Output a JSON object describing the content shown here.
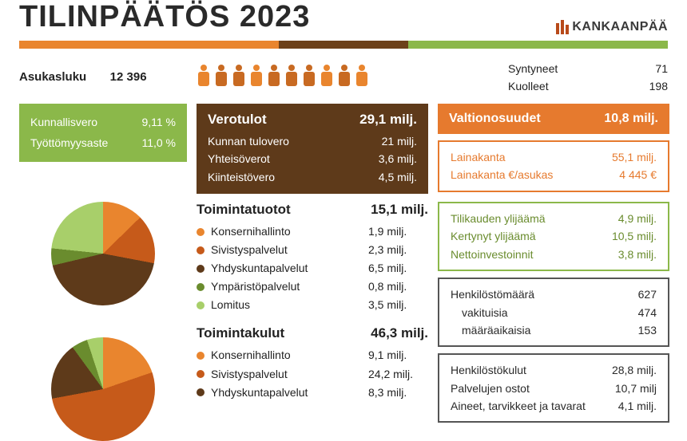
{
  "title": "TILINPÄÄTÖS 2023",
  "brand": "KANKAANPÄÄ",
  "stripe_colors": [
    "#e9852e",
    "#e9852e",
    "#6c4019",
    "#8bb84a",
    "#8bb84a"
  ],
  "population": {
    "label": "Asukasluku",
    "value": "12 396",
    "icon_colors": [
      "#e9852e",
      "#c86a22",
      "#c86a22",
      "#e9852e",
      "#c86a22",
      "#c86a22",
      "#c86a22",
      "#e9852e",
      "#c86a22",
      "#e9852e"
    ]
  },
  "vital": {
    "born_label": "Syntyneet",
    "born_val": "71",
    "dead_label": "Kuolleet",
    "dead_val": "198"
  },
  "rates": {
    "tax_label": "Kunnallisvero",
    "tax_val": "9,11 %",
    "unemp_label": "Työttömyysaste",
    "unemp_val": "11,0 %"
  },
  "tax_income": {
    "title": "Verotulot",
    "total": "29,1 milj.",
    "rows": [
      {
        "label": "Kunnan tulovero",
        "val": "21 milj."
      },
      {
        "label": "Yhteisöverot",
        "val": "3,6 milj."
      },
      {
        "label": "Kiinteistövero",
        "val": "4,5 milj."
      }
    ]
  },
  "state": {
    "title": "Valtionosuudet",
    "val": "10,8 milj."
  },
  "loans": {
    "rows": [
      {
        "label": "Lainakanta",
        "val": "55,1 milj."
      },
      {
        "label": "Lainakanta €/asukas",
        "val": "4 445 €"
      }
    ]
  },
  "surplus": {
    "rows": [
      {
        "label": "Tilikauden ylijäämä",
        "val": "4,9 milj."
      },
      {
        "label": "Kertynyt ylijäämä",
        "val": "10,5 milj."
      },
      {
        "label": "Nettoinvestoinnit",
        "val": "3,8 milj."
      }
    ]
  },
  "staff": {
    "rows": [
      {
        "label": "Henkilöstömäärä",
        "val": "627",
        "indent": false
      },
      {
        "label": "vakituisia",
        "val": "474",
        "indent": true
      },
      {
        "label": "määräaikaisia",
        "val": "153",
        "indent": true
      }
    ]
  },
  "costs": {
    "rows": [
      {
        "label": "Henkilöstökulut",
        "val": "28,8 milj."
      },
      {
        "label": "Palvelujen ostot",
        "val": "10,7 milj"
      },
      {
        "label": "Aineet, tarvikkeet ja tavarat",
        "val": "4,1 milj."
      }
    ]
  },
  "revenue": {
    "title": "Toimintatuotot",
    "total": "15,1 milj.",
    "items": [
      {
        "label": "Konsernihallinto",
        "val": "1,9 milj.",
        "color": "#e9852e",
        "share": 12.6
      },
      {
        "label": "Sivistyspalvelut",
        "val": "2,3 milj.",
        "color": "#c65a1a",
        "share": 15.2
      },
      {
        "label": "Yhdyskuntapalvelut",
        "val": "6,5 milj.",
        "color": "#5e3a1a",
        "share": 43.0
      },
      {
        "label": "Ympäristöpalvelut",
        "val": "0,8 milj.",
        "color": "#6a8c2e",
        "share": 5.3
      },
      {
        "label": "Lomitus",
        "val": "3,5 milj.",
        "color": "#a8cf6a",
        "share": 23.2
      }
    ]
  },
  "expenses": {
    "title": "Toimintakulut",
    "total": "46,3 milj.",
    "items": [
      {
        "label": "Konsernihallinto",
        "val": "9,1 milj.",
        "color": "#e9852e",
        "share": 19.7
      },
      {
        "label": "Sivistyspalvelut",
        "val": "24,2 milj.",
        "color": "#c65a1a",
        "share": 52.3
      },
      {
        "label": "Yhdyskuntapalvelut",
        "val": "8,3 milj.",
        "color": "#5e3a1a",
        "share": 17.9
      }
    ]
  },
  "colors": {
    "green": "#8bb84a",
    "brown": "#5e3a1a",
    "orange": "#e67a2e"
  }
}
